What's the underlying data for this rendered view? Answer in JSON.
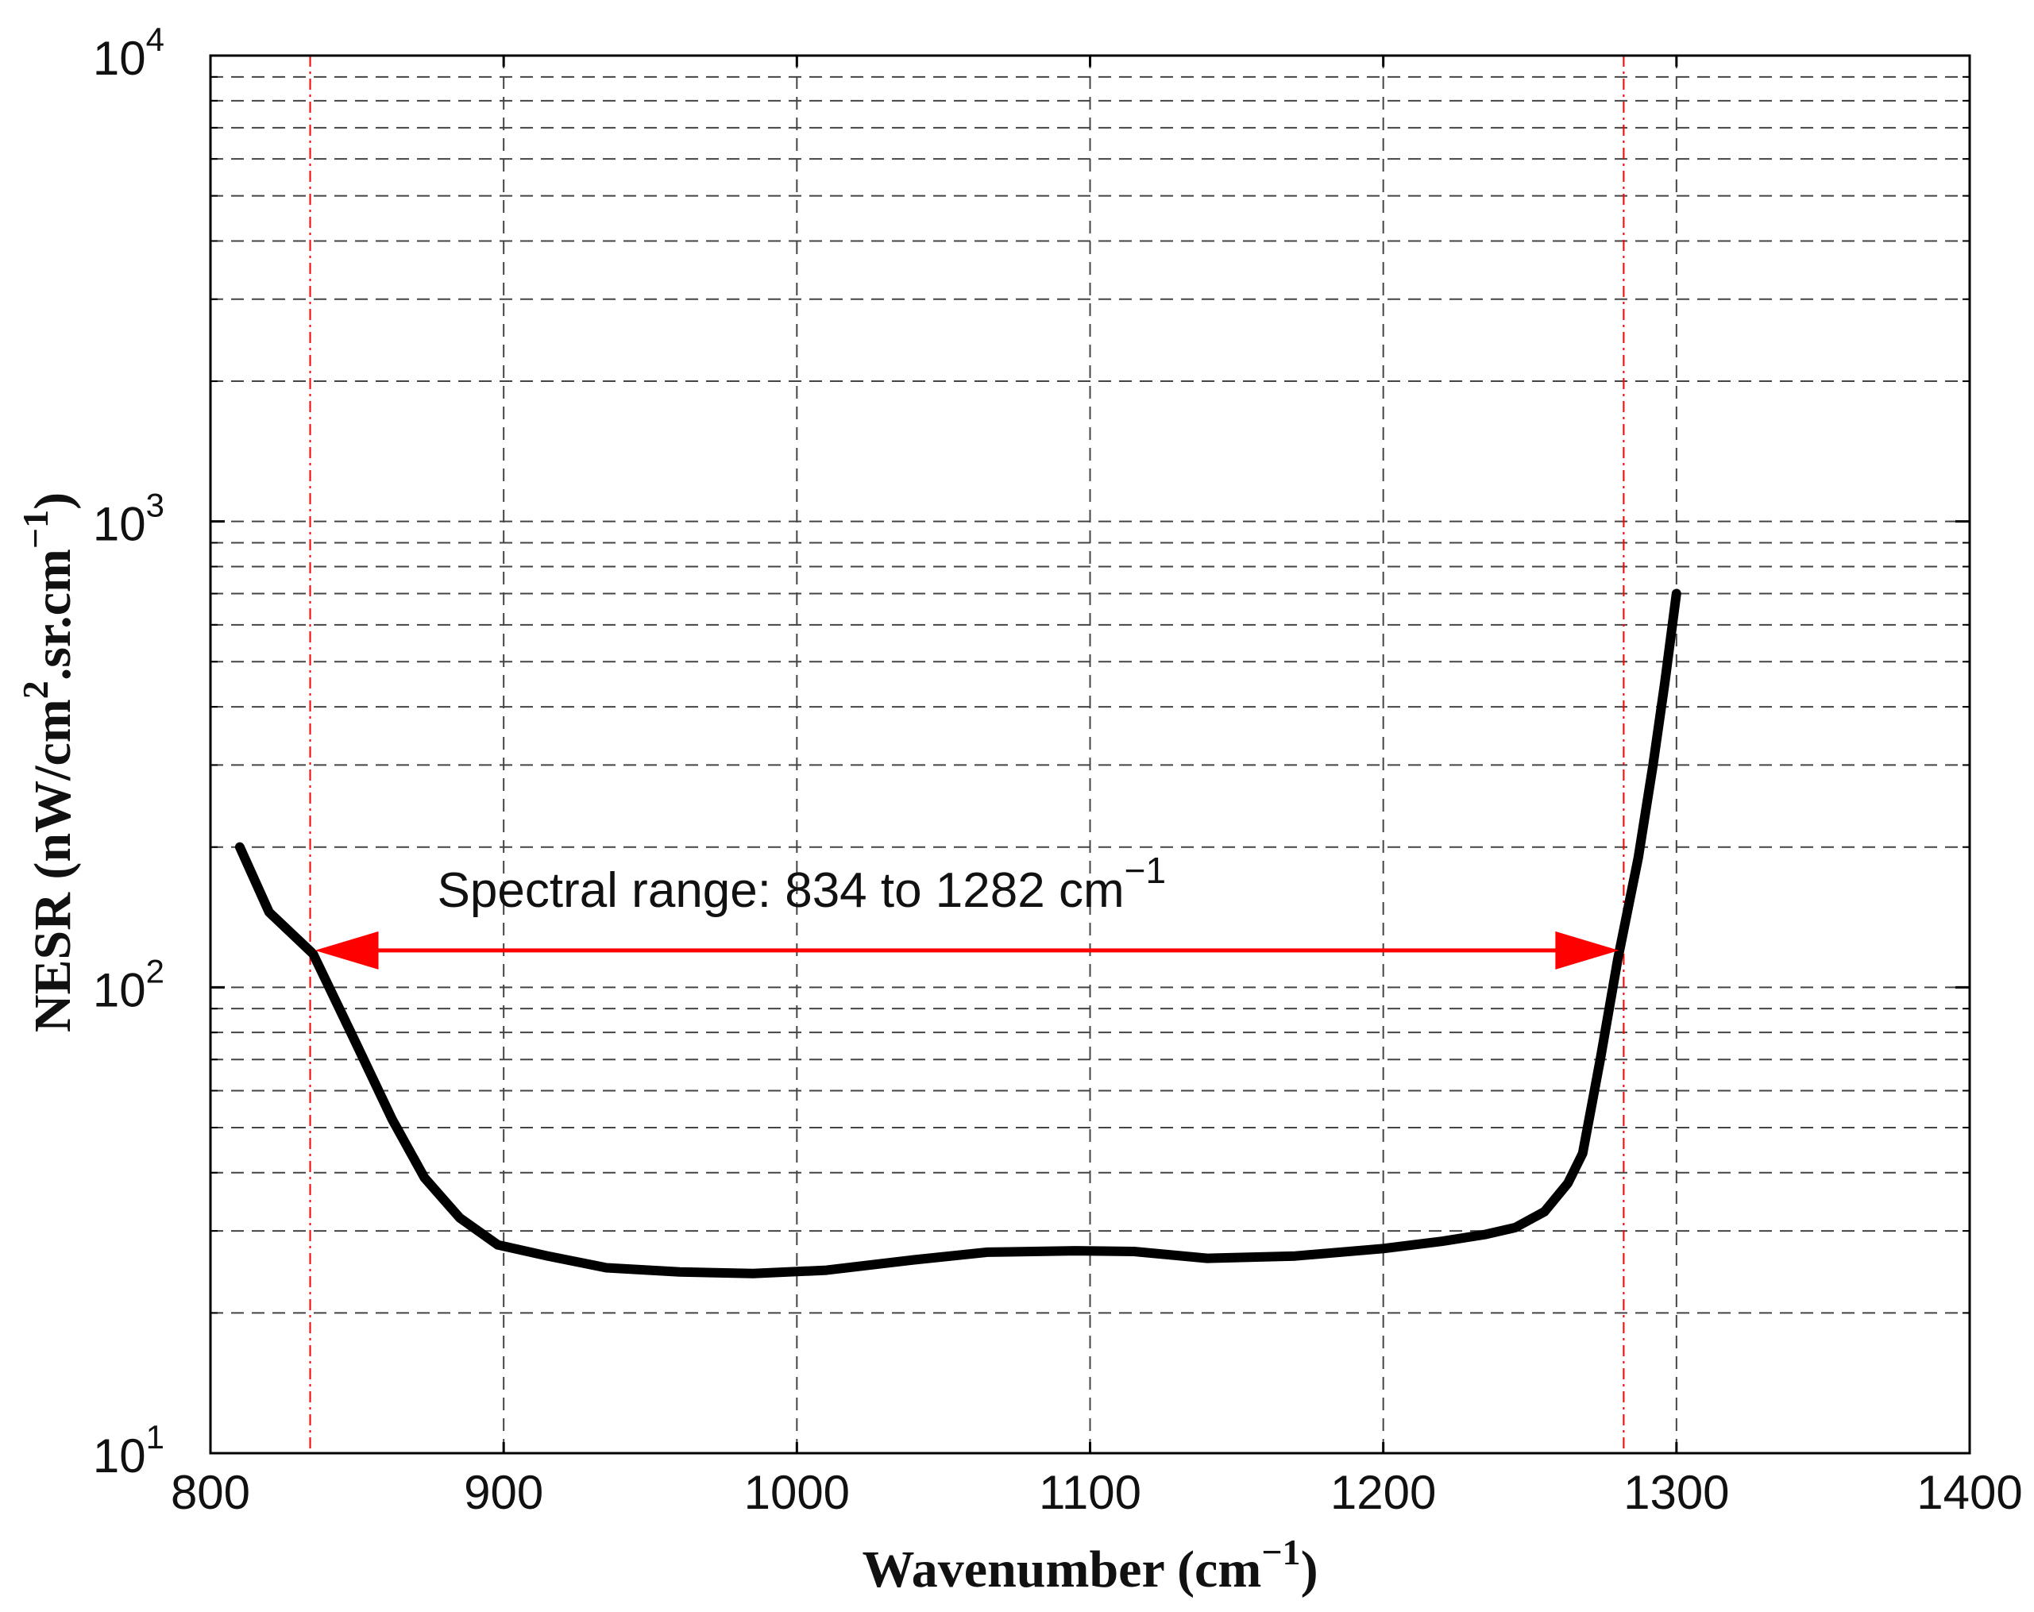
{
  "chart_data": {
    "type": "line",
    "title": "",
    "xlabel": "Wavenumber (cm",
    "xlabel_sup": "−1",
    "xlabel_close": ")",
    "ylabel": "NESR (nW/cm",
    "ylabel_sup1": "2",
    "ylabel_mid": ".sr.cm",
    "ylabel_sup2": "−1",
    "ylabel_close": ")",
    "xlim": [
      800,
      1400
    ],
    "ylim": [
      10,
      10000
    ],
    "y_scale": "log",
    "grid": true,
    "x_ticks": [
      800,
      900,
      1000,
      1100,
      1200,
      1300,
      1400
    ],
    "x_tick_labels": [
      "800",
      "900",
      "1000",
      "1100",
      "1200",
      "1300",
      "1400"
    ],
    "y_ticks": [
      10,
      100,
      1000,
      10000
    ],
    "y_tick_labels": [
      {
        "base": "10",
        "exp": "1"
      },
      {
        "base": "10",
        "exp": "2"
      },
      {
        "base": "10",
        "exp": "3"
      },
      {
        "base": "10",
        "exp": "4"
      }
    ],
    "series": [
      {
        "color": "#000000",
        "x": [
          810,
          820,
          835,
          850,
          862,
          873,
          885,
          898,
          915,
          935,
          960,
          985,
          1010,
          1040,
          1065,
          1095,
          1115,
          1140,
          1170,
          1200,
          1220,
          1235,
          1245,
          1255,
          1263,
          1268,
          1274,
          1280,
          1287,
          1292,
          1296,
          1300
        ],
        "y": [
          200,
          145,
          118,
          75,
          52,
          39,
          32,
          28,
          26.5,
          25,
          24.5,
          24.3,
          24.7,
          26,
          27,
          27.2,
          27.1,
          26.2,
          26.5,
          27.5,
          28.5,
          29.5,
          30.5,
          33,
          38,
          44,
          70,
          115,
          190,
          300,
          450,
          700
        ]
      }
    ],
    "annotation": {
      "text": "Spectral range: 834 to 1282 cm",
      "text_sup": "−1",
      "range": [
        834,
        1282
      ],
      "arrow_y": 120,
      "color": "#ff0000"
    }
  }
}
